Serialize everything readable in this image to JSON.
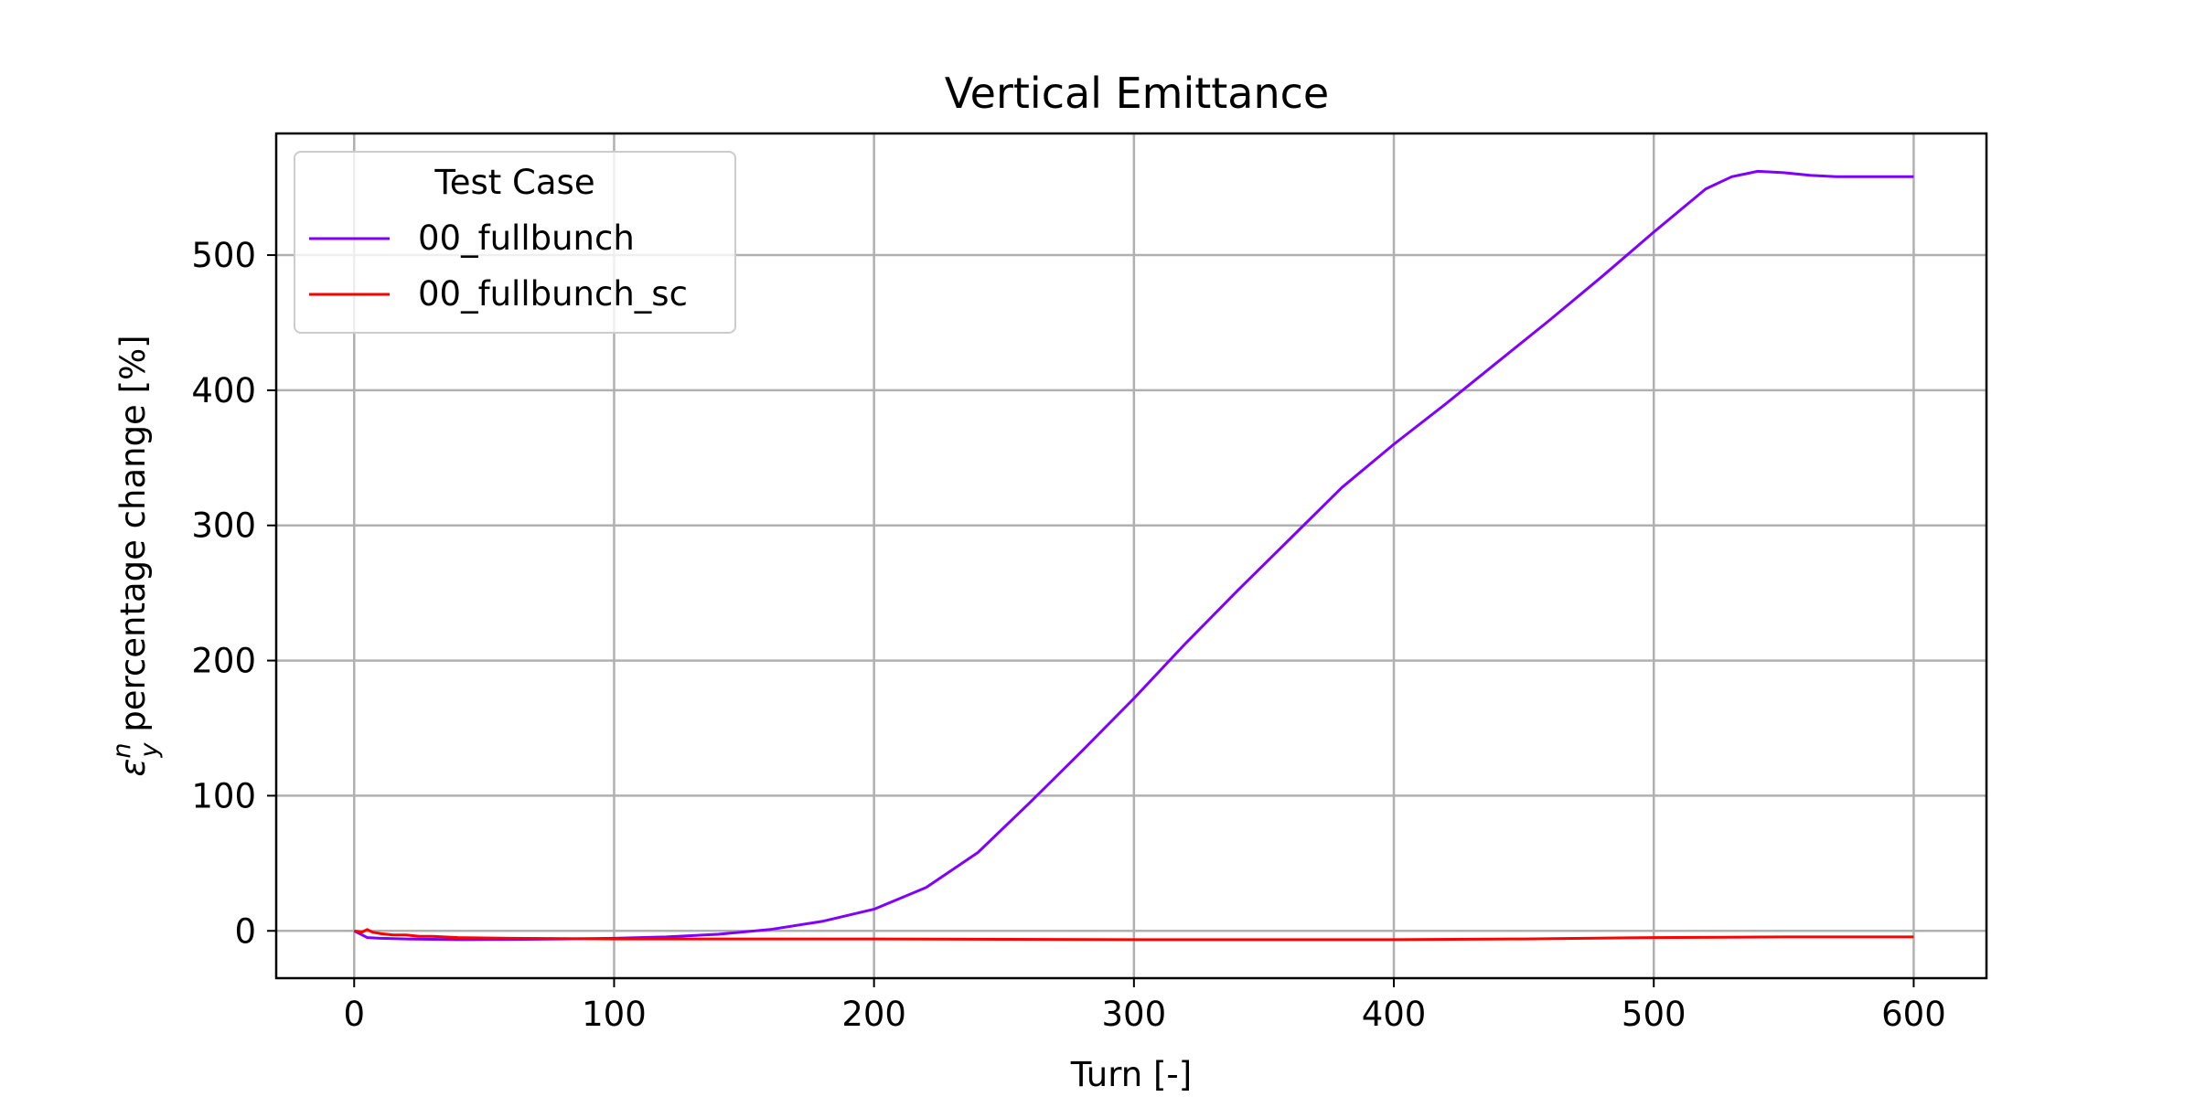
{
  "chart_data": {
    "type": "line",
    "title": "Vertical Emittance",
    "xlabel": "Turn [-]",
    "ylabel_prefix": "ε",
    "ylabel_sup": "n",
    "ylabel_sub": "y",
    "ylabel_suffix": " percentage change [%]",
    "xlim": [
      -30,
      628
    ],
    "ylim": [
      -35,
      590
    ],
    "xticks": [
      0,
      100,
      200,
      300,
      400,
      500,
      600
    ],
    "yticks": [
      0,
      100,
      200,
      300,
      400,
      500
    ],
    "grid": true,
    "legend": {
      "title": "Test Case",
      "placement": "top-left"
    },
    "series": [
      {
        "name": "00_fullbunch",
        "color": "#7f00ff",
        "x": [
          0,
          5,
          10,
          20,
          40,
          60,
          80,
          100,
          120,
          140,
          160,
          180,
          200,
          220,
          240,
          260,
          280,
          300,
          320,
          340,
          360,
          380,
          400,
          420,
          440,
          460,
          480,
          500,
          520,
          530,
          540,
          550,
          560,
          570,
          580,
          590,
          600
        ],
        "y": [
          0,
          -5,
          -5.5,
          -6,
          -6.5,
          -6.3,
          -6,
          -5.5,
          -4.5,
          -2.5,
          1,
          7,
          16,
          32,
          58,
          95,
          133,
          172,
          213,
          252,
          290,
          328,
          360,
          390,
          421,
          452,
          484,
          517,
          549,
          558,
          562,
          561,
          559,
          558,
          558,
          558,
          558
        ]
      },
      {
        "name": "00_fullbunch_sc",
        "color": "#ff0000",
        "x": [
          0,
          3,
          5,
          7,
          10,
          15,
          20,
          25,
          30,
          40,
          60,
          100,
          200,
          300,
          400,
          450,
          500,
          550,
          600
        ],
        "y": [
          0,
          -1,
          1,
          -1,
          -2,
          -3,
          -3,
          -4,
          -4,
          -5,
          -5.5,
          -6,
          -6,
          -6.5,
          -6.5,
          -6,
          -5,
          -4.5,
          -4.5
        ]
      }
    ]
  }
}
